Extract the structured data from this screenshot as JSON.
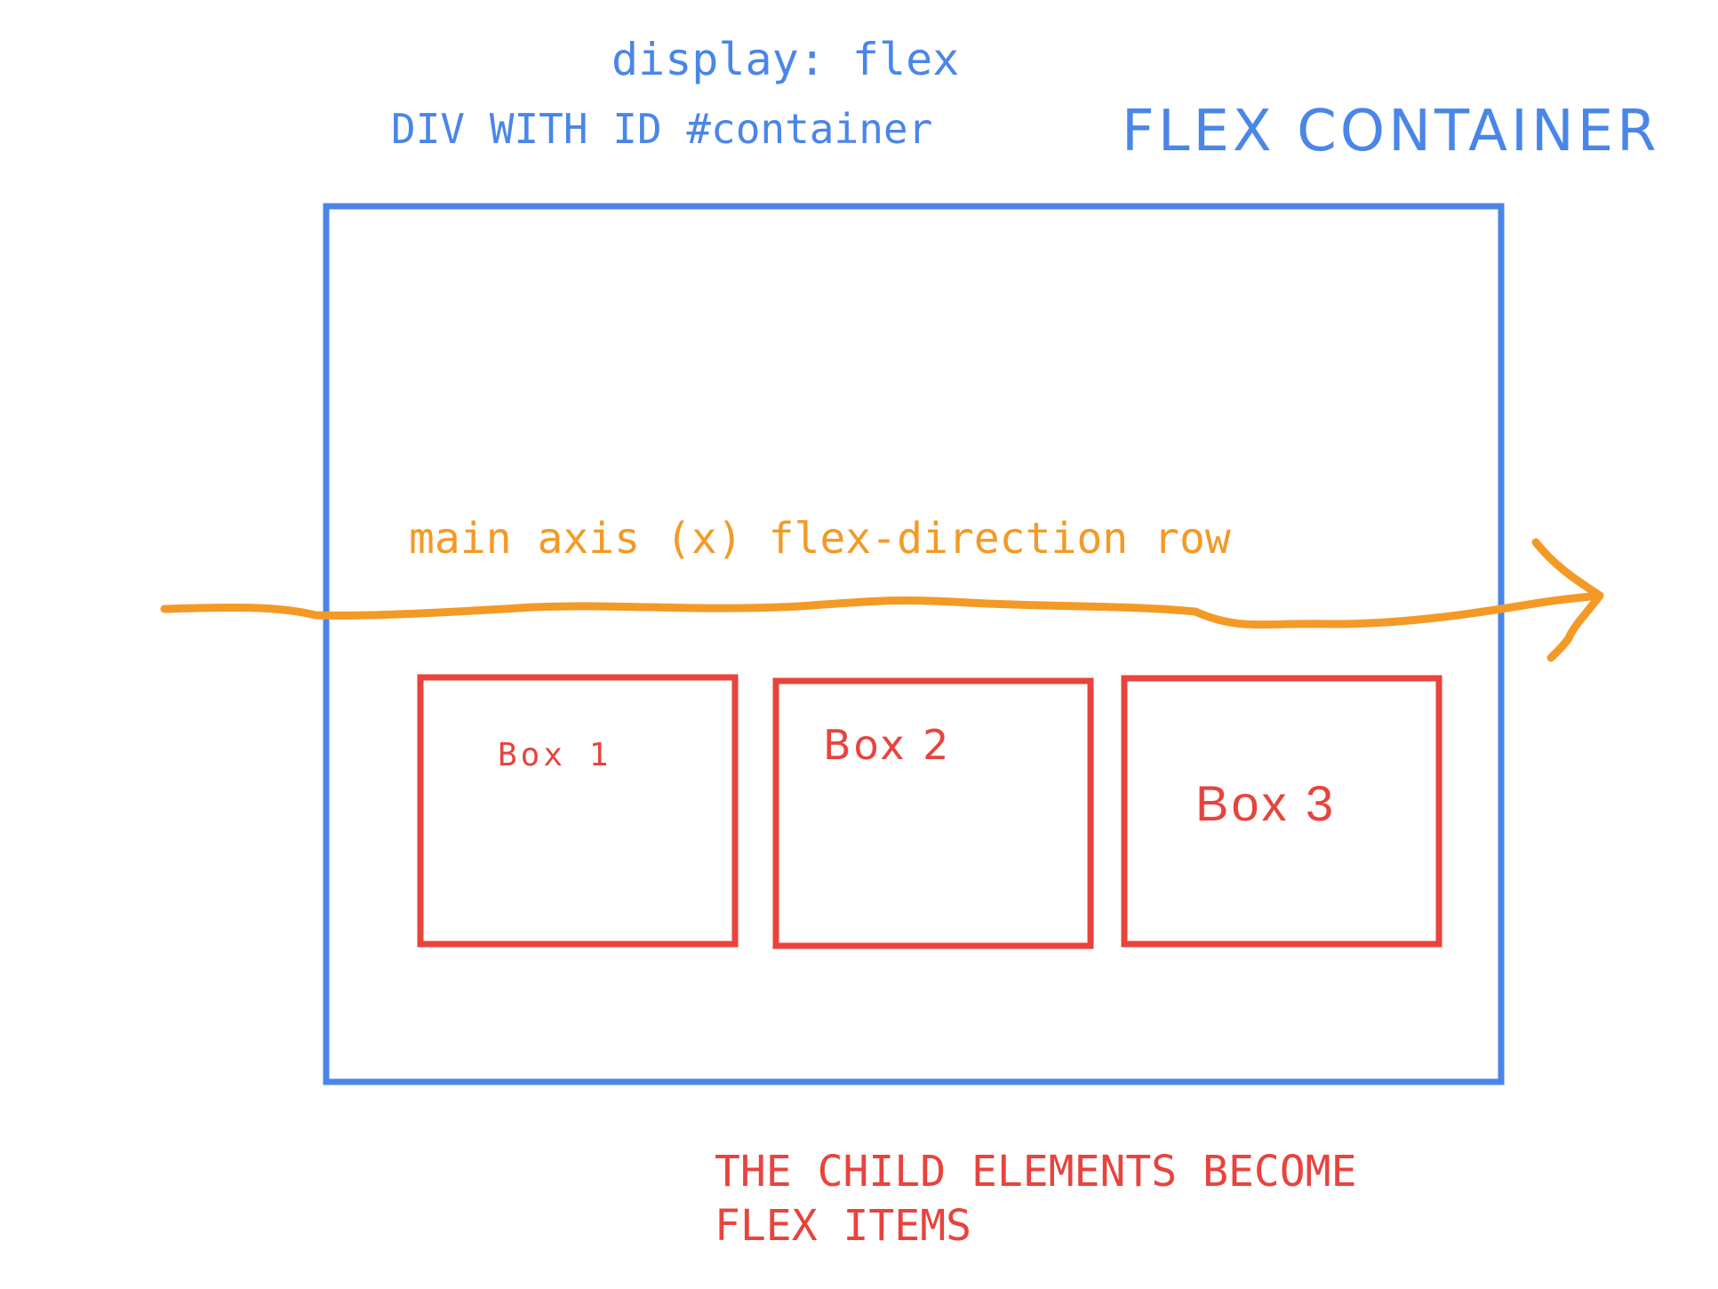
{
  "labels": {
    "display_flex": "display: flex",
    "div_id": "DIV WITH ID #container",
    "flex_container": "FLEX CONTAINER",
    "main_axis": "main axis (x) flex-direction row",
    "box1": "Box 1",
    "box2": "Box 2",
    "box3": "Box 3",
    "child_note_line1": "THE CHILD ELEMENTS BECOME",
    "child_note_line2": "FLEX ITEMS"
  },
  "colors": {
    "container": "#4a86e8",
    "items": "#e8433d",
    "axis": "#f39a26"
  }
}
